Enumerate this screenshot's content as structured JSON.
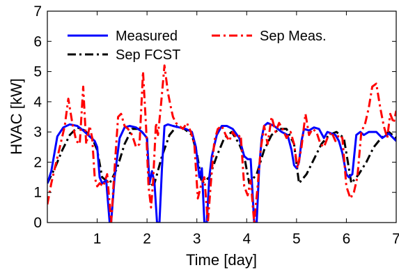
{
  "chart_data": {
    "type": "line",
    "xlabel": "Time [day]",
    "ylabel": "HVAC [kW]",
    "xlim": [
      0,
      7
    ],
    "ylim": [
      0,
      7
    ],
    "xticks": [
      1,
      2,
      3,
      4,
      5,
      6,
      7
    ],
    "yticks": [
      0,
      1,
      2,
      3,
      4,
      5,
      6,
      7
    ],
    "grid": false,
    "legend_position": "top",
    "series": [
      {
        "name": "Measured",
        "color": "#0000ff",
        "style": "solid",
        "x": [
          0.0,
          0.08,
          0.2,
          0.32,
          0.45,
          0.6,
          0.72,
          0.85,
          0.95,
          1.0,
          1.05,
          1.1,
          1.18,
          1.25,
          1.28,
          1.35,
          1.45,
          1.55,
          1.65,
          1.78,
          1.9,
          2.0,
          2.05,
          2.1,
          2.15,
          2.2,
          2.25,
          2.3,
          2.35,
          2.42,
          2.52,
          2.65,
          2.78,
          2.9,
          2.98,
          3.05,
          3.1,
          3.15,
          3.2,
          3.25,
          3.3,
          3.4,
          3.5,
          3.6,
          3.72,
          3.85,
          3.95,
          4.02,
          4.08,
          4.15,
          4.2,
          4.25,
          4.3,
          4.35,
          4.42,
          4.55,
          4.7,
          4.82,
          4.9,
          4.95,
          5.0,
          5.05,
          5.1,
          5.15,
          5.25,
          5.35,
          5.45,
          5.55,
          5.62,
          5.7,
          5.78,
          5.85,
          5.92,
          6.0,
          6.05,
          6.12,
          6.2,
          6.28,
          6.35,
          6.45,
          6.6,
          6.72,
          6.85,
          7.0
        ],
        "y": [
          1.3,
          1.7,
          2.85,
          3.15,
          3.25,
          3.2,
          3.05,
          2.85,
          2.7,
          2.5,
          1.5,
          1.3,
          1.4,
          0.0,
          0.0,
          1.5,
          2.8,
          3.15,
          3.2,
          3.15,
          3.0,
          2.8,
          1.3,
          1.7,
          1.3,
          0.0,
          0.0,
          1.8,
          3.2,
          3.25,
          3.2,
          3.15,
          3.1,
          3.0,
          2.5,
          1.5,
          1.8,
          0.0,
          0.0,
          1.5,
          2.2,
          2.9,
          3.2,
          3.2,
          3.1,
          2.8,
          2.2,
          2.1,
          2.1,
          0.0,
          0.0,
          1.8,
          2.8,
          3.2,
          3.3,
          3.2,
          3.0,
          2.9,
          2.4,
          1.9,
          1.8,
          2.0,
          2.7,
          3.1,
          3.05,
          3.15,
          3.1,
          2.8,
          3.0,
          2.95,
          2.9,
          2.7,
          2.3,
          1.6,
          1.5,
          1.6,
          2.9,
          3.0,
          2.9,
          3.0,
          3.0,
          2.8,
          2.95,
          2.7
        ]
      },
      {
        "name": "Sep FCST",
        "color": "#000000",
        "style": "dashdot",
        "x": [
          0.0,
          0.15,
          0.3,
          0.45,
          0.6,
          0.75,
          0.9,
          1.0,
          1.1,
          1.25,
          1.4,
          1.55,
          1.7,
          1.85,
          2.0,
          2.05,
          2.15,
          2.3,
          2.45,
          2.6,
          2.75,
          2.9,
          3.0,
          3.1,
          3.25,
          3.4,
          3.55,
          3.7,
          3.85,
          3.95,
          4.05,
          4.2,
          4.35,
          4.5,
          4.65,
          4.8,
          4.95,
          5.05,
          5.2,
          5.35,
          5.5,
          5.65,
          5.8,
          5.95,
          6.1,
          6.25,
          6.4,
          6.55,
          6.7,
          6.85,
          7.0
        ],
        "y": [
          1.3,
          1.8,
          2.4,
          2.9,
          3.15,
          3.05,
          2.8,
          2.4,
          1.5,
          1.3,
          1.8,
          2.6,
          3.1,
          3.1,
          2.8,
          1.2,
          1.3,
          2.2,
          2.9,
          3.2,
          3.1,
          2.9,
          2.3,
          1.3,
          1.5,
          2.2,
          2.8,
          3.0,
          2.6,
          2.2,
          1.3,
          1.6,
          2.4,
          2.9,
          3.1,
          3.1,
          2.6,
          1.3,
          1.6,
          2.1,
          2.6,
          2.9,
          3.0,
          2.8,
          1.3,
          1.6,
          2.0,
          2.5,
          2.8,
          3.0,
          2.8
        ]
      },
      {
        "name": "Sep Meas.",
        "color": "#ff0000",
        "style": "dashdot",
        "x": [
          0.0,
          0.08,
          0.15,
          0.25,
          0.35,
          0.42,
          0.5,
          0.58,
          0.65,
          0.72,
          0.78,
          0.85,
          0.9,
          0.95,
          1.0,
          1.05,
          1.12,
          1.2,
          1.28,
          1.35,
          1.42,
          1.48,
          1.55,
          1.62,
          1.7,
          1.78,
          1.85,
          1.92,
          1.98,
          2.03,
          2.08,
          2.12,
          2.18,
          2.22,
          2.28,
          2.35,
          2.42,
          2.48,
          2.52,
          2.58,
          2.65,
          2.72,
          2.8,
          2.88,
          2.95,
          3.02,
          3.08,
          3.15,
          3.22,
          3.28,
          3.35,
          3.42,
          3.5,
          3.58,
          3.65,
          3.72,
          3.8,
          3.88,
          3.95,
          4.02,
          4.08,
          4.15,
          4.22,
          4.28,
          4.35,
          4.42,
          4.5,
          4.58,
          4.65,
          4.72,
          4.8,
          4.88,
          4.95,
          5.02,
          5.1,
          5.18,
          5.25,
          5.32,
          5.4,
          5.48,
          5.55,
          5.62,
          5.7,
          5.78,
          5.85,
          5.92,
          6.0,
          6.08,
          6.15,
          6.22,
          6.3,
          6.38,
          6.45,
          6.52,
          6.6,
          6.68,
          6.75,
          6.82,
          6.88,
          6.95,
          7.0
        ],
        "y": [
          0.6,
          1.3,
          1.8,
          2.5,
          3.2,
          4.1,
          3.3,
          2.7,
          2.6,
          4.5,
          2.6,
          3.2,
          2.8,
          1.5,
          1.2,
          1.3,
          1.2,
          1.6,
          0.0,
          1.8,
          3.5,
          3.6,
          3.2,
          3.1,
          2.9,
          2.5,
          2.6,
          5.0,
          3.2,
          1.2,
          0.5,
          1.3,
          3.3,
          2.9,
          3.9,
          5.2,
          4.3,
          3.8,
          3.5,
          3.3,
          3.2,
          3.1,
          3.3,
          3.0,
          2.6,
          0.8,
          1.2,
          1.5,
          0.0,
          1.3,
          2.7,
          3.1,
          3.2,
          2.9,
          2.7,
          3.0,
          2.8,
          2.9,
          1.2,
          0.9,
          1.4,
          0.0,
          1.2,
          2.4,
          3.2,
          2.6,
          3.5,
          3.0,
          3.3,
          3.1,
          2.8,
          3.0,
          2.6,
          1.8,
          2.5,
          3.6,
          2.9,
          3.1,
          3.0,
          2.6,
          2.5,
          2.8,
          3.0,
          2.7,
          2.9,
          2.8,
          1.2,
          0.8,
          1.0,
          1.5,
          3.0,
          3.3,
          3.8,
          4.5,
          4.6,
          3.8,
          3.2,
          2.8,
          3.6,
          3.3,
          3.7
        ]
      }
    ]
  }
}
